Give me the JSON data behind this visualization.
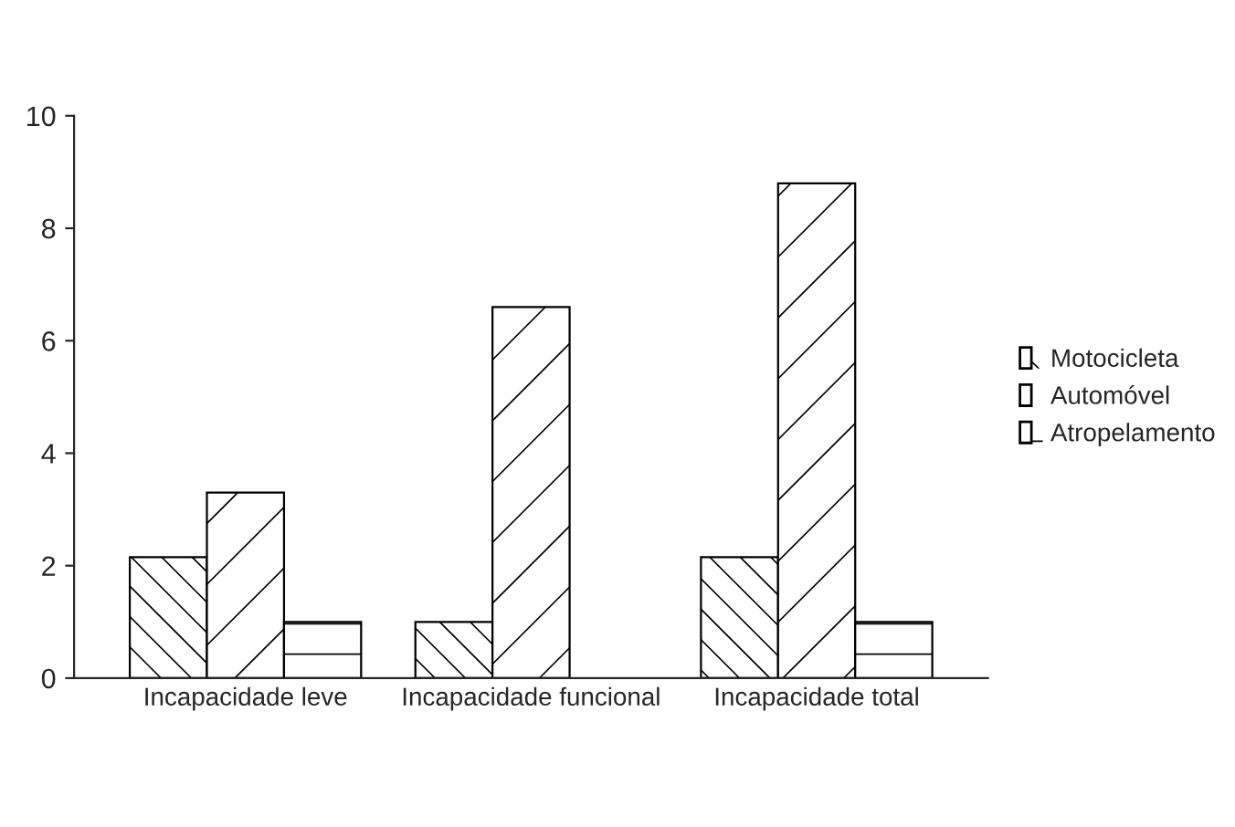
{
  "chart_data": {
    "type": "bar",
    "categories": [
      "Incapacidade leve",
      "Incapacidade funcional",
      "Incapacidade total"
    ],
    "series": [
      {
        "name": "Motocicleta",
        "color": "#ffffff",
        "values": [
          2.15,
          1.0,
          2.15
        ]
      },
      {
        "name": "Automóvel",
        "color": "#ffffff",
        "values": [
          3.3,
          6.6,
          8.8
        ]
      },
      {
        "name": "Atropelamento",
        "color": "#ffffff",
        "values": [
          1.0,
          null,
          1.0
        ]
      }
    ],
    "ylim": [
      0,
      10
    ],
    "yticks": [
      0,
      2,
      4,
      6,
      8,
      10
    ],
    "grid": false,
    "legend": "right"
  }
}
